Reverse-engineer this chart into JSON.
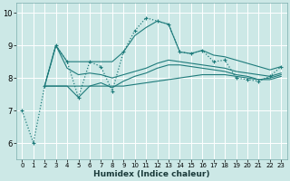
{
  "bg_color": "#cce8e6",
  "grid_color": "#ffffff",
  "line_color": "#1e7b7b",
  "xlim": [
    -0.5,
    23.5
  ],
  "ylim": [
    5.5,
    10.3
  ],
  "xticks": [
    0,
    1,
    2,
    3,
    4,
    5,
    6,
    7,
    8,
    9,
    10,
    11,
    12,
    13,
    14,
    15,
    16,
    17,
    18,
    19,
    20,
    21,
    22,
    23
  ],
  "yticks": [
    6,
    7,
    8,
    9,
    10
  ],
  "xlabel": "Humidex (Indice chaleur)",
  "main_x": [
    0,
    1,
    2,
    3,
    4,
    5,
    6,
    7,
    8,
    9,
    10,
    11,
    12,
    13,
    14,
    15,
    16,
    17,
    18,
    19,
    20,
    21,
    22,
    23
  ],
  "main_y": [
    7.0,
    6.0,
    7.75,
    9.0,
    8.5,
    7.4,
    8.5,
    8.35,
    7.6,
    8.8,
    9.45,
    9.85,
    9.75,
    9.65,
    8.8,
    8.75,
    8.85,
    8.5,
    8.55,
    8.0,
    7.95,
    7.9,
    8.05,
    8.35
  ],
  "line_a_x": [
    2,
    3,
    4,
    5,
    6,
    7,
    8,
    9,
    10,
    11,
    12,
    13,
    14,
    15,
    16,
    17,
    18,
    19,
    20,
    21,
    22,
    23
  ],
  "line_a_y": [
    7.75,
    9.0,
    8.5,
    8.5,
    8.5,
    8.5,
    8.5,
    8.8,
    9.3,
    9.55,
    9.75,
    9.65,
    8.8,
    8.75,
    8.85,
    8.7,
    8.65,
    8.55,
    8.45,
    8.35,
    8.25,
    8.35
  ],
  "line_b_x": [
    2,
    3,
    4,
    5,
    6,
    7,
    8,
    9,
    10,
    11,
    12,
    13,
    14,
    15,
    16,
    17,
    18,
    19,
    20,
    21,
    22,
    23
  ],
  "line_b_y": [
    7.75,
    9.0,
    8.3,
    8.1,
    8.15,
    8.1,
    8.0,
    8.1,
    8.2,
    8.3,
    8.45,
    8.55,
    8.5,
    8.45,
    8.4,
    8.35,
    8.3,
    8.2,
    8.15,
    8.1,
    8.05,
    8.15
  ],
  "line_c_x": [
    2,
    3,
    4,
    5,
    6,
    7,
    8,
    9,
    10,
    11,
    12,
    13,
    14,
    15,
    16,
    17,
    18,
    19,
    20,
    21,
    22,
    23
  ],
  "line_c_y": [
    7.75,
    7.75,
    7.75,
    7.4,
    7.75,
    7.85,
    7.7,
    7.9,
    8.05,
    8.15,
    8.3,
    8.4,
    8.4,
    8.35,
    8.3,
    8.25,
    8.2,
    8.1,
    8.05,
    7.95,
    8.0,
    8.1
  ],
  "line_d_x": [
    2,
    3,
    4,
    5,
    6,
    7,
    8,
    9,
    10,
    11,
    12,
    13,
    14,
    15,
    16,
    17,
    18,
    19,
    20,
    21,
    22,
    23
  ],
  "line_d_y": [
    7.75,
    7.75,
    7.75,
    7.75,
    7.75,
    7.75,
    7.75,
    7.75,
    7.8,
    7.85,
    7.9,
    7.95,
    8.0,
    8.05,
    8.1,
    8.1,
    8.1,
    8.05,
    8.0,
    7.95,
    7.95,
    8.05
  ]
}
